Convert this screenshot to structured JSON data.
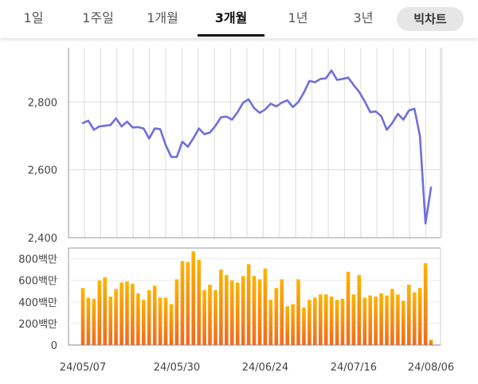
{
  "tabs": [
    {
      "label": "1일",
      "active": false
    },
    {
      "label": "1주일",
      "active": false
    },
    {
      "label": "1개월",
      "active": false
    },
    {
      "label": "3개월",
      "active": true
    },
    {
      "label": "1년",
      "active": false
    },
    {
      "label": "3년",
      "active": false
    }
  ],
  "bigchart_button": "빅차트",
  "colors": {
    "price_line": "#6f6fdc",
    "volume_bar_top": "#ffb300",
    "volume_bar_bottom": "#f26a1b",
    "grid": "#dcdcdc"
  },
  "chart_data": [
    {
      "type": "line",
      "title": "",
      "ylim": [
        2400,
        2960
      ],
      "yticks": [
        "2,800",
        "2,600",
        "2,400"
      ],
      "ytick_values": [
        2800,
        2600,
        2400
      ],
      "grid": true,
      "values": [
        2738,
        2745,
        2718,
        2728,
        2730,
        2732,
        2752,
        2728,
        2742,
        2725,
        2726,
        2722,
        2692,
        2722,
        2720,
        2673,
        2638,
        2638,
        2683,
        2668,
        2693,
        2722,
        2705,
        2710,
        2730,
        2755,
        2757,
        2748,
        2770,
        2798,
        2808,
        2782,
        2768,
        2778,
        2795,
        2787,
        2798,
        2805,
        2785,
        2800,
        2828,
        2862,
        2858,
        2868,
        2870,
        2893,
        2865,
        2868,
        2872,
        2850,
        2830,
        2802,
        2770,
        2772,
        2758,
        2718,
        2738,
        2765,
        2748,
        2775,
        2780,
        2700,
        2442,
        2548
      ]
    },
    {
      "type": "bar",
      "title": "",
      "ylim": [
        0,
        900
      ],
      "yticks": [
        "800백만",
        "600백만",
        "400백만",
        "200백만",
        "0"
      ],
      "ytick_values": [
        800,
        600,
        400,
        200,
        0
      ],
      "unit": "백만",
      "xticks": [
        "24/05/07",
        "24/05/30",
        "24/06/24",
        "24/07/16",
        "24/08/06"
      ],
      "xtick_indices": [
        0,
        17,
        33,
        49,
        63
      ],
      "values": [
        530,
        440,
        430,
        600,
        630,
        450,
        520,
        580,
        590,
        570,
        480,
        420,
        510,
        550,
        440,
        440,
        380,
        610,
        780,
        770,
        870,
        790,
        510,
        560,
        510,
        700,
        650,
        600,
        580,
        640,
        750,
        640,
        610,
        710,
        420,
        530,
        610,
        360,
        380,
        610,
        350,
        420,
        440,
        470,
        470,
        450,
        420,
        430,
        680,
        470,
        650,
        440,
        460,
        450,
        480,
        460,
        520,
        470,
        410,
        560,
        490,
        530,
        760,
        50
      ]
    }
  ]
}
